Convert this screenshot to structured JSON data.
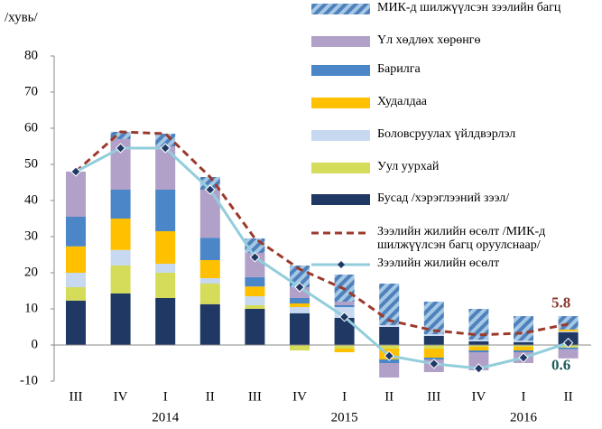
{
  "chart_data": {
    "type": "bar",
    "y_label": "/хувь/",
    "categories": [
      "III",
      "IV",
      "I",
      "II",
      "III",
      "IV",
      "I",
      "II",
      "III",
      "IV",
      "I",
      "II"
    ],
    "year_labels": [
      "2014",
      "2015",
      "2016"
    ],
    "ylim": [
      -10,
      80
    ],
    "yticks": [
      -10,
      0,
      10,
      20,
      30,
      40,
      50,
      60,
      70,
      80
    ],
    "series": [
      {
        "name": "МИК-д шилжүүлсэн зээлийн багц",
        "type": "bar",
        "color": "#4f81bd",
        "pattern": "striped",
        "values": [
          0,
          2,
          3.5,
          3.5,
          4,
          6,
          7.5,
          11.5,
          9,
          8.5,
          6.8,
          3.7
        ]
      },
      {
        "name": "Үл хөдлөх хөрөнгө",
        "type": "bar",
        "color": "#b1a0c7",
        "values": [
          12.5,
          14,
          12,
          13.3,
          6.7,
          3,
          1,
          -4,
          -3.5,
          -5,
          -3,
          -2.5
        ]
      },
      {
        "name": "Барилга",
        "type": "bar",
        "color": "#4a86c8",
        "values": [
          8.2,
          8,
          11.5,
          6.2,
          2.6,
          1.5,
          0.5,
          -1,
          -0.5,
          -0.5,
          -0.5,
          -0.5
        ]
      },
      {
        "name": "Худалдаа",
        "type": "bar",
        "color": "#ffc000",
        "values": [
          7.3,
          8.7,
          9,
          5,
          2.7,
          1,
          -1,
          -3,
          -2.5,
          -1,
          -1,
          0.5
        ]
      },
      {
        "name": "Боловсруулах үйлдвэрлэл",
        "type": "bar",
        "color": "#c6d9f0",
        "values": [
          4,
          4.3,
          2.5,
          1.5,
          2.5,
          1.7,
          3,
          0.5,
          0.5,
          0.5,
          0.4,
          0.3
        ]
      },
      {
        "name": "Уул уурхай",
        "type": "bar",
        "color": "#d4dc5a",
        "values": [
          3.7,
          7.7,
          7,
          5.7,
          1,
          -1.5,
          -1,
          -1,
          -1,
          -0.5,
          -0.5,
          -0.7
        ]
      },
      {
        "name": "Бусад /хэрэглээний зээл/",
        "type": "bar",
        "color": "#1f3864",
        "values": [
          12.3,
          14.3,
          13,
          11.3,
          10,
          8.8,
          7.5,
          5,
          2.5,
          1,
          0.8,
          3.5
        ]
      },
      {
        "name": "Зээлийн жилийн өсөлт /МИК-д шилжүүлсэн багц оруулснаар/",
        "type": "line",
        "style": "dashed",
        "color": "#9b3a2c",
        "label_color": "#8b3a2e",
        "values": [
          48,
          59,
          58.5,
          46.5,
          29.5,
          21,
          15.5,
          6.8,
          4,
          2.8,
          3.3,
          5.8
        ]
      },
      {
        "name": "Зээлийн жилийн өсөлт",
        "type": "line",
        "style": "solid",
        "color": "#92cddc",
        "marker": "#1f3864",
        "label_color": "#1f5a5a",
        "values": [
          48,
          54.5,
          54.5,
          43,
          24.3,
          16,
          7.8,
          -3,
          -5.2,
          -6.5,
          -3.5,
          0.6
        ]
      }
    ]
  }
}
